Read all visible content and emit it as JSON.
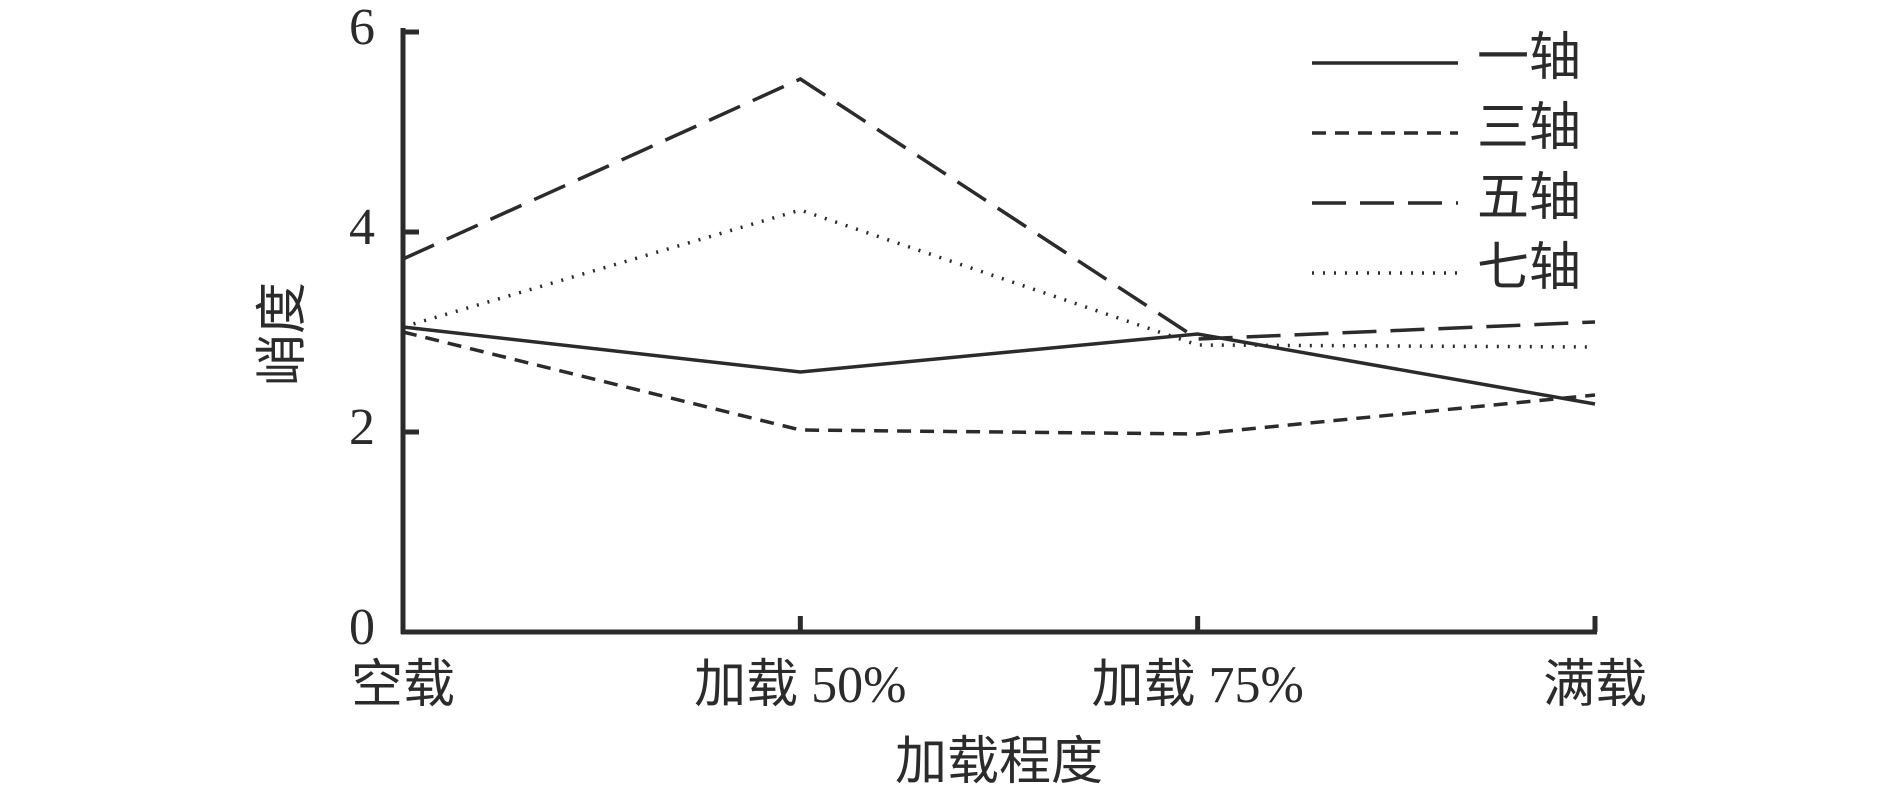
{
  "chart_data": {
    "type": "line",
    "xlabel": "加载程度",
    "ylabel": "峭度",
    "categories": [
      "空载",
      "加载 50%",
      "加载 75%",
      "满载"
    ],
    "series": [
      {
        "name": "一轴",
        "color": "#2b2b2b",
        "style": "solid",
        "values": [
          3.05,
          2.6,
          2.98,
          2.28
        ]
      },
      {
        "name": "三轴",
        "color": "#2b2b2b",
        "style": "dashed",
        "values": [
          3.0,
          2.02,
          1.98,
          2.37
        ]
      },
      {
        "name": "五轴",
        "color": "#2b2b2b",
        "style": "longdash",
        "values": [
          3.73,
          5.53,
          2.93,
          3.1
        ]
      },
      {
        "name": "七轴",
        "color": "#2b2b2b",
        "style": "dotted",
        "values": [
          3.05,
          4.22,
          2.87,
          2.85
        ]
      }
    ],
    "ylim": [
      0,
      6
    ],
    "yticks": [
      0,
      2,
      4,
      6
    ],
    "legend": "upper right"
  }
}
